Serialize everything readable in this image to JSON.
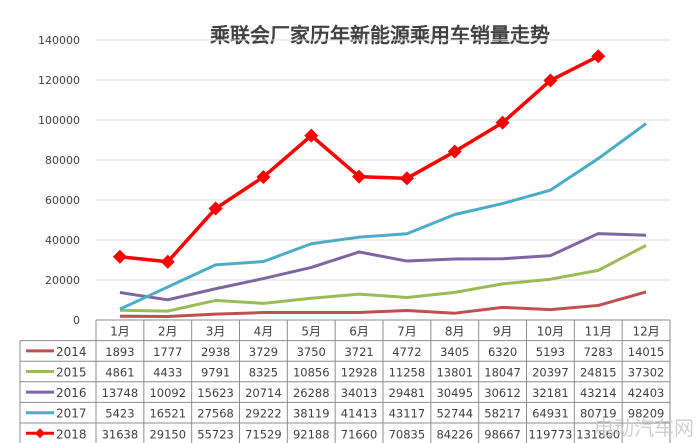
{
  "chart_data": {
    "type": "line",
    "title": "乘联会厂家历年新能源乘用车销量走势",
    "categories": [
      "1月",
      "2月",
      "3月",
      "4月",
      "5月",
      "6月",
      "7月",
      "8月",
      "9月",
      "10月",
      "11月",
      "12月"
    ],
    "ylim": [
      0,
      140000
    ],
    "yticks": [
      0,
      20000,
      40000,
      60000,
      80000,
      100000,
      120000,
      140000
    ],
    "grid": true,
    "legend": "bottom-table",
    "series": [
      {
        "name": "2014",
        "color": "#c0504d",
        "marker": "none",
        "values": [
          1893,
          1777,
          2938,
          3729,
          3750,
          3721,
          4772,
          3405,
          6320,
          5193,
          7283,
          14015
        ]
      },
      {
        "name": "2015",
        "color": "#9bbb59",
        "marker": "none",
        "values": [
          4861,
          4433,
          9791,
          8325,
          10856,
          12928,
          11258,
          13801,
          18047,
          20397,
          24815,
          37302
        ]
      },
      {
        "name": "2016",
        "color": "#8064a2",
        "marker": "none",
        "values": [
          13748,
          10092,
          15623,
          20714,
          26288,
          34013,
          29481,
          30495,
          30612,
          32181,
          43214,
          42403
        ]
      },
      {
        "name": "2017",
        "color": "#4bacc6",
        "marker": "none",
        "values": [
          5423,
          16521,
          27568,
          29222,
          38119,
          41413,
          43117,
          52744,
          58217,
          64931,
          80719,
          98209
        ]
      },
      {
        "name": "2018",
        "color": "#ff0000",
        "marker": "diamond",
        "values": [
          31638,
          29150,
          55723,
          71529,
          92188,
          71660,
          70835,
          84226,
          98667,
          119773,
          131860,
          null
        ]
      }
    ],
    "table_cells": [
      [
        "1893",
        "1777",
        "2938",
        "3729",
        "3750",
        "3721",
        "4772",
        "3405",
        "6320",
        "5193",
        "7283",
        "14015"
      ],
      [
        "4861",
        "4433",
        "9791",
        "8325",
        "10856",
        "12928",
        "11258",
        "13801",
        "18047",
        "20397",
        "24815",
        "37302"
      ],
      [
        "13748",
        "10092",
        "15623",
        "20714",
        "26288",
        "34013",
        "29481",
        "30495",
        "30612",
        "32181",
        "43214",
        "42403"
      ],
      [
        "5423",
        "16521",
        "27568",
        "29222",
        "38119",
        "41413",
        "43117",
        "52744",
        "58217",
        "64931",
        "80719",
        "98209"
      ],
      [
        "31638",
        "29150",
        "55723",
        "71529",
        "92188",
        "71660",
        "70835",
        "84226",
        "98667",
        "119773",
        "131860",
        ""
      ]
    ]
  },
  "watermark": "电动汽车网"
}
